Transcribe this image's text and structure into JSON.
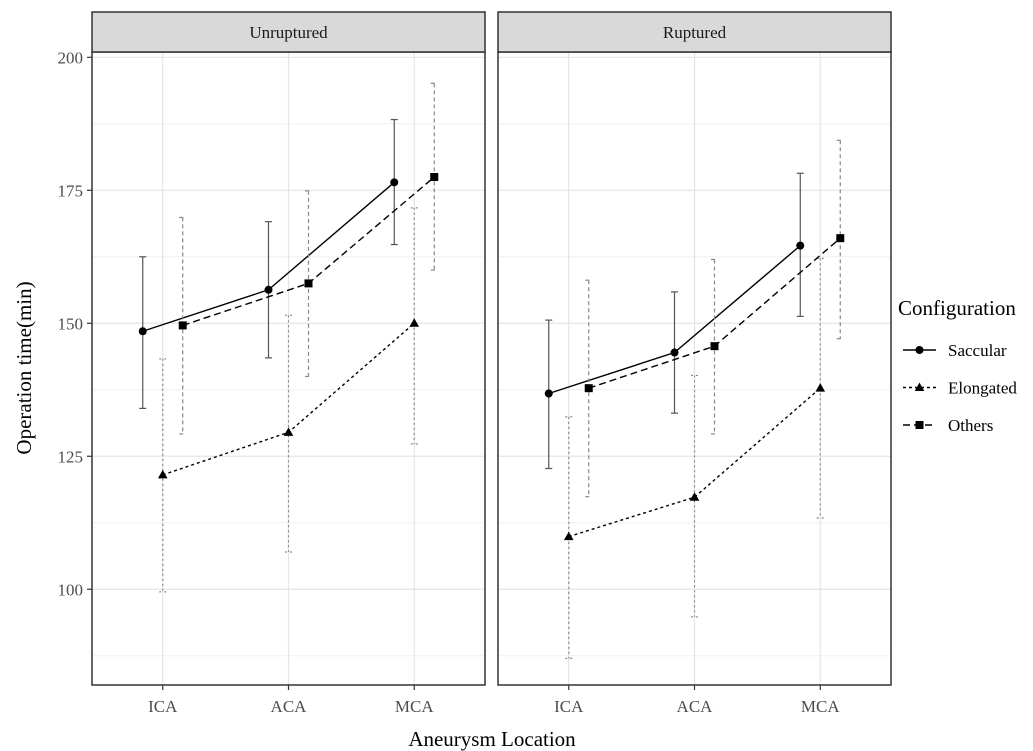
{
  "chart_data": {
    "type": "line",
    "xlabel": "Aneurysm Location",
    "ylabel": "Operation time(min)",
    "categories": [
      "ICA",
      "ACA",
      "MCA"
    ],
    "y_ticks": [
      100,
      125,
      150,
      175,
      200
    ],
    "ylim": [
      82,
      201
    ],
    "grid": true,
    "facets": [
      {
        "label": "Unruptured",
        "series": [
          {
            "name": "Saccular",
            "marker": "circle",
            "linestyle": "solid",
            "values": [
              148.5,
              156.3,
              176.5
            ],
            "lower": [
              134,
              143.5,
              164.8
            ],
            "upper": [
              162.5,
              169.1,
              188.3
            ]
          },
          {
            "name": "Elongated",
            "marker": "triangle",
            "linestyle": "dotted",
            "values": [
              121.5,
              129.5,
              150
            ],
            "lower": [
              99.5,
              107,
              127.3
            ],
            "upper": [
              143.3,
              151.5,
              171.7
            ]
          },
          {
            "name": "Others",
            "marker": "square",
            "linestyle": "dashed",
            "values": [
              149.6,
              157.5,
              177.5
            ],
            "lower": [
              129.2,
              140,
              160
            ],
            "upper": [
              169.9,
              174.9,
              195.1
            ]
          }
        ]
      },
      {
        "label": "Ruptured",
        "series": [
          {
            "name": "Saccular",
            "marker": "circle",
            "linestyle": "solid",
            "values": [
              136.8,
              144.5,
              164.6
            ],
            "lower": [
              122.7,
              133.1,
              151.3
            ],
            "upper": [
              150.6,
              155.9,
              178.2
            ]
          },
          {
            "name": "Elongated",
            "marker": "triangle",
            "linestyle": "dotted",
            "values": [
              109.9,
              117.3,
              137.8
            ],
            "lower": [
              87,
              94.8,
              113.4
            ],
            "upper": [
              132.4,
              140.2,
              162.2
            ]
          },
          {
            "name": "Others",
            "marker": "square",
            "linestyle": "dashed",
            "values": [
              137.8,
              145.7,
              166
            ],
            "lower": [
              117.4,
              129.2,
              147.1
            ],
            "upper": [
              158.1,
              162,
              184.4
            ]
          }
        ]
      }
    ],
    "legend": {
      "title": "Configuration",
      "position": "right",
      "entries": [
        "Saccular",
        "Elongated",
        "Others"
      ]
    }
  }
}
